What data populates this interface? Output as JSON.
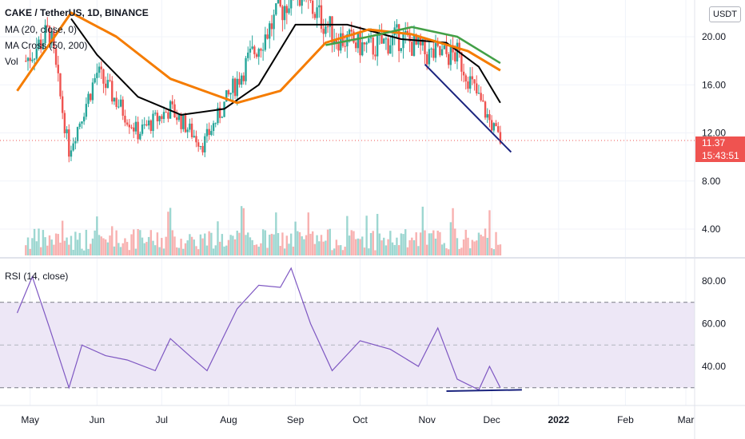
{
  "header": {
    "symbol_line": "CAKE / TetherUS, 1D, BINANCE",
    "ma_label": "MA (20, close, 0)",
    "ma_cross_label": "MA Cross (50, 200)",
    "vol_label": "Vol",
    "rsi_label": "RSI (14, close)",
    "currency_button": "USDT"
  },
  "current_price": {
    "value": "11.37",
    "countdown": "15:43:51"
  },
  "colors": {
    "up": "#26a69a",
    "down": "#ef5350",
    "ma20": "#000000",
    "ma50": "#f57c00",
    "ma200": "#43a047",
    "trendline": "#1a237e",
    "rsi": "#7e57c2",
    "rsi_band": "#ede7f6"
  },
  "chart_data": [
    {
      "type": "candlestick",
      "title": "CAKE / TetherUS, 1D, BINANCE",
      "x_ticks": [
        "May",
        "Jun",
        "Jul",
        "Aug",
        "Sep",
        "Oct",
        "Nov",
        "Dec",
        "2022",
        "Feb",
        "Mar"
      ],
      "y_ticks": [
        "20.00",
        "16.00",
        "12.00",
        "8.00",
        "4.00"
      ],
      "ylim": [
        2.4,
        23.6
      ],
      "approx_close": [
        {
          "x": "2021-04-29",
          "y": 18.0
        },
        {
          "x": "2021-05-10",
          "y": 20.5
        },
        {
          "x": "2021-05-19",
          "y": 10.5
        },
        {
          "x": "2021-06-01",
          "y": 17.0
        },
        {
          "x": "2021-06-20",
          "y": 12.0
        },
        {
          "x": "2021-07-05",
          "y": 14.0
        },
        {
          "x": "2021-07-20",
          "y": 11.0
        },
        {
          "x": "2021-08-10",
          "y": 18.0
        },
        {
          "x": "2021-09-01",
          "y": 24.0
        },
        {
          "x": "2021-09-20",
          "y": 20.0
        },
        {
          "x": "2021-10-05",
          "y": 19.0
        },
        {
          "x": "2021-10-20",
          "y": 20.0
        },
        {
          "x": "2021-11-01",
          "y": 18.5
        },
        {
          "x": "2021-11-15",
          "y": 18.5
        },
        {
          "x": "2021-11-30",
          "y": 13.0
        },
        {
          "x": "2021-12-05",
          "y": 11.37
        }
      ],
      "series": [
        {
          "name": "MA (20, close, 0)",
          "values": [
            {
              "x": "2021-05-20",
              "y": 21.5
            },
            {
              "x": "2021-06-01",
              "y": 18.5
            },
            {
              "x": "2021-06-20",
              "y": 15.0
            },
            {
              "x": "2021-07-10",
              "y": 13.5
            },
            {
              "x": "2021-07-30",
              "y": 14.0
            },
            {
              "x": "2021-08-15",
              "y": 16.0
            },
            {
              "x": "2021-09-01",
              "y": 21.0
            },
            {
              "x": "2021-09-25",
              "y": 21.0
            },
            {
              "x": "2021-10-20",
              "y": 19.8
            },
            {
              "x": "2021-11-10",
              "y": 19.5
            },
            {
              "x": "2021-11-25",
              "y": 17.5
            },
            {
              "x": "2021-12-05",
              "y": 14.5
            }
          ]
        },
        {
          "name": "MA Cross 50",
          "values": [
            {
              "x": "2021-04-25",
              "y": 15.5
            },
            {
              "x": "2021-05-20",
              "y": 22.0
            },
            {
              "x": "2021-06-10",
              "y": 20.0
            },
            {
              "x": "2021-07-05",
              "y": 16.5
            },
            {
              "x": "2021-08-05",
              "y": 14.5
            },
            {
              "x": "2021-08-25",
              "y": 15.5
            },
            {
              "x": "2021-09-15",
              "y": 19.5
            },
            {
              "x": "2021-10-05",
              "y": 20.6
            },
            {
              "x": "2021-10-25",
              "y": 20.2
            },
            {
              "x": "2021-11-20",
              "y": 18.8
            },
            {
              "x": "2021-12-05",
              "y": 17.2
            }
          ]
        },
        {
          "name": "MA Cross 200",
          "values": [
            {
              "x": "2021-09-15",
              "y": 19.3
            },
            {
              "x": "2021-10-05",
              "y": 20.0
            },
            {
              "x": "2021-10-25",
              "y": 20.8
            },
            {
              "x": "2021-11-15",
              "y": 20.0
            },
            {
              "x": "2021-12-05",
              "y": 17.8
            }
          ]
        },
        {
          "name": "",
          "values": [
            {
              "x": "2021-10-31",
              "y": 17.7
            },
            {
              "x": "2021-12-10",
              "y": 10.4
            }
          ]
        }
      ]
    },
    {
      "type": "line",
      "title": "RSI (14, close)",
      "x_ticks": [
        "May",
        "Jun",
        "Jul",
        "Aug",
        "Sep",
        "Oct",
        "Nov",
        "Dec",
        "2022",
        "Feb",
        "Mar"
      ],
      "y_ticks": [
        "80.00",
        "60.00",
        "40.00"
      ],
      "ylim": [
        20,
        92
      ],
      "band": [
        30,
        70
      ],
      "midline": 50,
      "series": [
        {
          "name": "RSI (14, close)",
          "values": [
            {
              "x": "2021-04-25",
              "y": 65
            },
            {
              "x": "2021-05-02",
              "y": 82
            },
            {
              "x": "2021-05-10",
              "y": 58
            },
            {
              "x": "2021-05-19",
              "y": 30
            },
            {
              "x": "2021-05-25",
              "y": 50
            },
            {
              "x": "2021-06-05",
              "y": 45
            },
            {
              "x": "2021-06-15",
              "y": 43
            },
            {
              "x": "2021-06-28",
              "y": 38
            },
            {
              "x": "2021-07-05",
              "y": 53
            },
            {
              "x": "2021-07-15",
              "y": 44
            },
            {
              "x": "2021-07-22",
              "y": 38
            },
            {
              "x": "2021-08-05",
              "y": 67
            },
            {
              "x": "2021-08-15",
              "y": 78
            },
            {
              "x": "2021-08-25",
              "y": 77
            },
            {
              "x": "2021-08-30",
              "y": 86
            },
            {
              "x": "2021-09-08",
              "y": 60
            },
            {
              "x": "2021-09-18",
              "y": 38
            },
            {
              "x": "2021-10-01",
              "y": 52
            },
            {
              "x": "2021-10-15",
              "y": 48
            },
            {
              "x": "2021-10-28",
              "y": 40
            },
            {
              "x": "2021-11-06",
              "y": 58
            },
            {
              "x": "2021-11-15",
              "y": 34
            },
            {
              "x": "2021-11-25",
              "y": 29
            },
            {
              "x": "2021-11-30",
              "y": 40
            },
            {
              "x": "2021-12-05",
              "y": 30
            }
          ]
        },
        {
          "name": "",
          "values": [
            {
              "x": "2021-11-10",
              "y": 28.4
            },
            {
              "x": "2021-12-15",
              "y": 29.0
            }
          ]
        }
      ]
    }
  ]
}
